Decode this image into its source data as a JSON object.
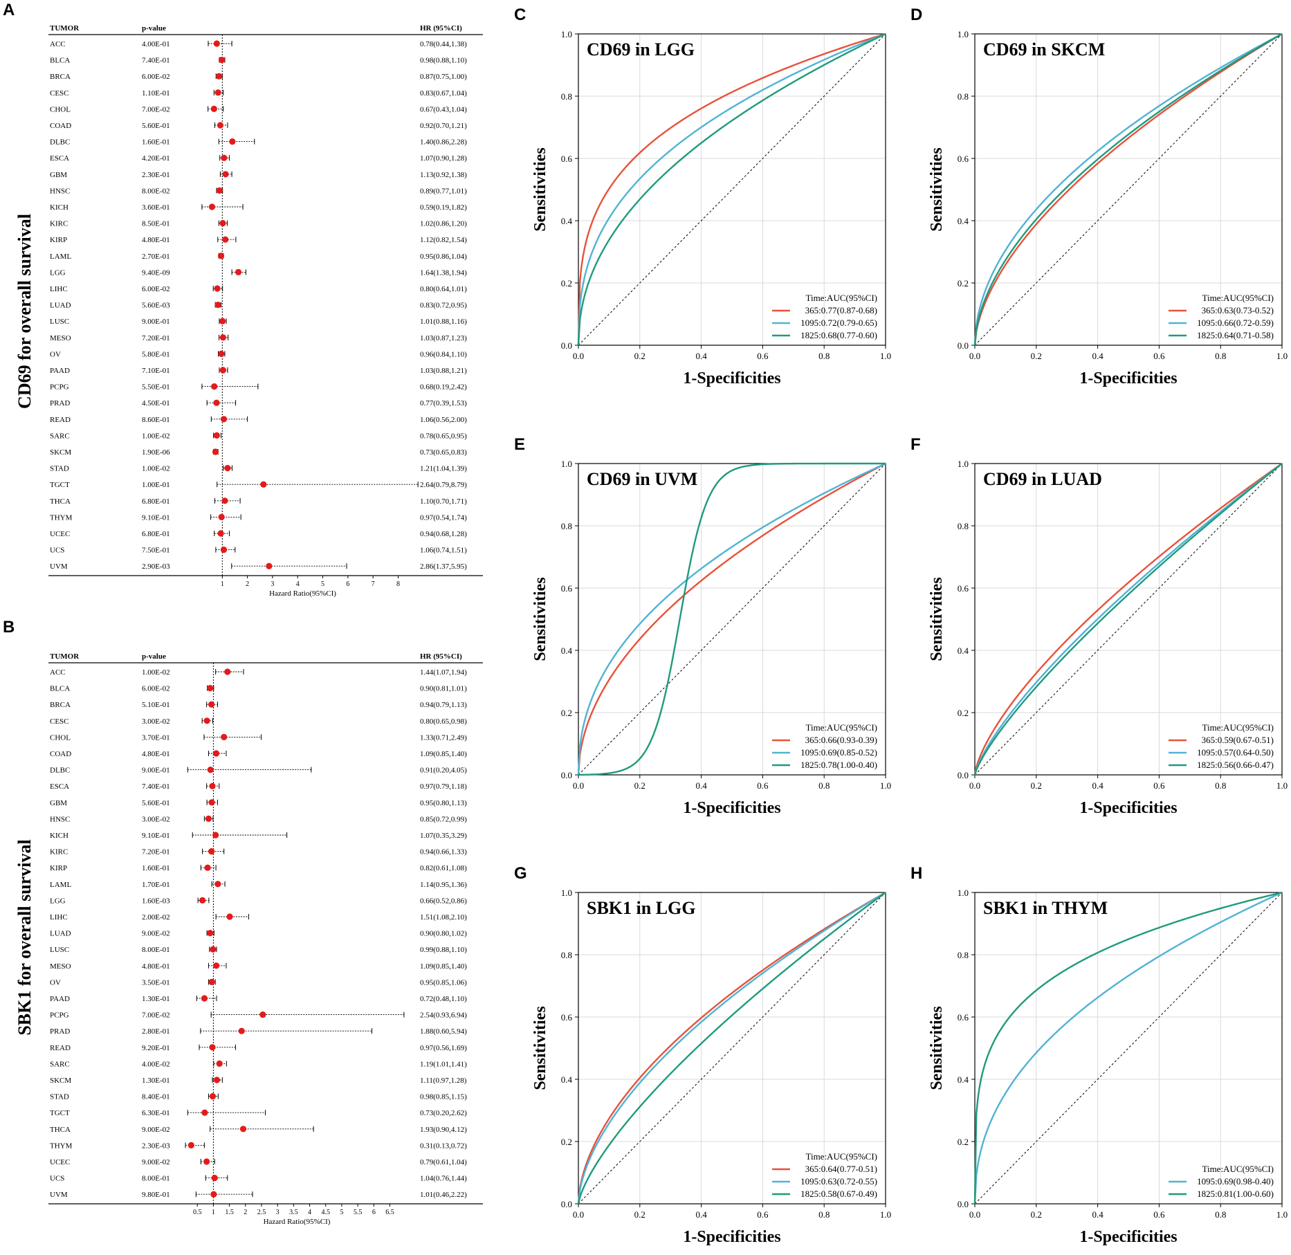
{
  "chart_data": [
    {
      "type": "forest",
      "panel": "A",
      "ylabel": "CD69 for overall survival",
      "xlabel": "Hazard Ratio(95%CI)",
      "headers": {
        "tumor": "TUMOR",
        "p": "p-value",
        "hr": "HR (95%CI)"
      },
      "xticks": [
        "1",
        "2",
        "3",
        "4",
        "5",
        "6",
        "7",
        "8"
      ],
      "xlim": [
        0,
        8.4
      ],
      "ref_line": 1,
      "rows": [
        {
          "tumor": "ACC",
          "p": "4.00E-01",
          "hr_text": "0.78(0.44,1.38)",
          "hr": 0.78,
          "lo": 0.44,
          "hi": 1.38
        },
        {
          "tumor": "BLCA",
          "p": "7.40E-01",
          "hr_text": "0.98(0.88,1.10)",
          "hr": 0.98,
          "lo": 0.88,
          "hi": 1.1
        },
        {
          "tumor": "BRCA",
          "p": "6.00E-02",
          "hr_text": "0.87(0.75,1.00)",
          "hr": 0.87,
          "lo": 0.75,
          "hi": 1.0
        },
        {
          "tumor": "CESC",
          "p": "1.10E-01",
          "hr_text": "0.83(0.67,1.04)",
          "hr": 0.83,
          "lo": 0.67,
          "hi": 1.04
        },
        {
          "tumor": "CHOL",
          "p": "7.00E-02",
          "hr_text": "0.67(0.43,1.04)",
          "hr": 0.67,
          "lo": 0.43,
          "hi": 1.04
        },
        {
          "tumor": "COAD",
          "p": "5.60E-01",
          "hr_text": "0.92(0.70,1.21)",
          "hr": 0.92,
          "lo": 0.7,
          "hi": 1.21
        },
        {
          "tumor": "DLBC",
          "p": "1.60E-01",
          "hr_text": "1.40(0.86,2.28)",
          "hr": 1.4,
          "lo": 0.86,
          "hi": 2.28
        },
        {
          "tumor": "ESCA",
          "p": "4.20E-01",
          "hr_text": "1.07(0.90,1.28)",
          "hr": 1.07,
          "lo": 0.9,
          "hi": 1.28
        },
        {
          "tumor": "GBM",
          "p": "2.30E-01",
          "hr_text": "1.13(0.92,1.38)",
          "hr": 1.13,
          "lo": 0.92,
          "hi": 1.38
        },
        {
          "tumor": "HNSC",
          "p": "8.00E-02",
          "hr_text": "0.89(0.77,1.01)",
          "hr": 0.89,
          "lo": 0.77,
          "hi": 1.01
        },
        {
          "tumor": "KICH",
          "p": "3.60E-01",
          "hr_text": "0.59(0.19,1.82)",
          "hr": 0.59,
          "lo": 0.19,
          "hi": 1.82
        },
        {
          "tumor": "KIRC",
          "p": "8.50E-01",
          "hr_text": "1.02(0.86,1.20)",
          "hr": 1.02,
          "lo": 0.86,
          "hi": 1.2
        },
        {
          "tumor": "KIRP",
          "p": "4.80E-01",
          "hr_text": "1.12(0.82,1.54)",
          "hr": 1.12,
          "lo": 0.82,
          "hi": 1.54
        },
        {
          "tumor": "LAML",
          "p": "2.70E-01",
          "hr_text": "0.95(0.86,1.04)",
          "hr": 0.95,
          "lo": 0.86,
          "hi": 1.04
        },
        {
          "tumor": "LGG",
          "p": "9.40E-09",
          "hr_text": "1.64(1.38,1.94)",
          "hr": 1.64,
          "lo": 1.38,
          "hi": 1.94
        },
        {
          "tumor": "LIHC",
          "p": "6.00E-02",
          "hr_text": "0.80(0.64,1.01)",
          "hr": 0.8,
          "lo": 0.64,
          "hi": 1.01
        },
        {
          "tumor": "LUAD",
          "p": "5.60E-03",
          "hr_text": "0.83(0.72,0.95)",
          "hr": 0.83,
          "lo": 0.72,
          "hi": 0.95
        },
        {
          "tumor": "LUSC",
          "p": "9.00E-01",
          "hr_text": "1.01(0.88,1.16)",
          "hr": 1.01,
          "lo": 0.88,
          "hi": 1.16
        },
        {
          "tumor": "MESO",
          "p": "7.20E-01",
          "hr_text": "1.03(0.87,1.23)",
          "hr": 1.03,
          "lo": 0.87,
          "hi": 1.23
        },
        {
          "tumor": "OV",
          "p": "5.80E-01",
          "hr_text": "0.96(0.84,1.10)",
          "hr": 0.96,
          "lo": 0.84,
          "hi": 1.1
        },
        {
          "tumor": "PAAD",
          "p": "7.10E-01",
          "hr_text": "1.03(0.88,1.21)",
          "hr": 1.03,
          "lo": 0.88,
          "hi": 1.21
        },
        {
          "tumor": "PCPG",
          "p": "5.50E-01",
          "hr_text": "0.68(0.19,2.42)",
          "hr": 0.68,
          "lo": 0.19,
          "hi": 2.42
        },
        {
          "tumor": "PRAD",
          "p": "4.50E-01",
          "hr_text": "0.77(0.39,1.53)",
          "hr": 0.77,
          "lo": 0.39,
          "hi": 1.53
        },
        {
          "tumor": "READ",
          "p": "8.60E-01",
          "hr_text": "1.06(0.56,2.00)",
          "hr": 1.06,
          "lo": 0.56,
          "hi": 2.0
        },
        {
          "tumor": "SARC",
          "p": "1.00E-02",
          "hr_text": "0.78(0.65,0.95)",
          "hr": 0.78,
          "lo": 0.65,
          "hi": 0.95
        },
        {
          "tumor": "SKCM",
          "p": "1.90E-06",
          "hr_text": "0.73(0.65,0.83)",
          "hr": 0.73,
          "lo": 0.65,
          "hi": 0.83
        },
        {
          "tumor": "STAD",
          "p": "1.00E-02",
          "hr_text": "1.21(1.04,1.39)",
          "hr": 1.21,
          "lo": 1.04,
          "hi": 1.39
        },
        {
          "tumor": "TGCT",
          "p": "1.00E-01",
          "hr_text": "2.64(0.79,8.79)",
          "hr": 2.64,
          "lo": 0.79,
          "hi": 8.79
        },
        {
          "tumor": "THCA",
          "p": "6.80E-01",
          "hr_text": "1.10(0.70,1.71)",
          "hr": 1.1,
          "lo": 0.7,
          "hi": 1.71
        },
        {
          "tumor": "THYM",
          "p": "9.10E-01",
          "hr_text": "0.97(0.54,1.74)",
          "hr": 0.97,
          "lo": 0.54,
          "hi": 1.74
        },
        {
          "tumor": "UCEC",
          "p": "6.80E-01",
          "hr_text": "0.94(0.68,1.28)",
          "hr": 0.94,
          "lo": 0.68,
          "hi": 1.28
        },
        {
          "tumor": "UCS",
          "p": "7.50E-01",
          "hr_text": "1.06(0.74,1.51)",
          "hr": 1.06,
          "lo": 0.74,
          "hi": 1.51
        },
        {
          "tumor": "UVM",
          "p": "2.90E-03",
          "hr_text": "2.86(1.37,5.95)",
          "hr": 2.86,
          "lo": 1.37,
          "hi": 5.95
        }
      ]
    },
    {
      "type": "forest",
      "panel": "B",
      "ylabel": "SBK1 for overall survival",
      "xlabel": "Hazard Ratio(95%CI)",
      "headers": {
        "tumor": "TUMOR",
        "p": "p-value",
        "hr": "HR (95%CI)"
      },
      "xticks": [
        "0.5",
        "1",
        "1.5",
        "2",
        "2.5",
        "3",
        "3.5",
        "4",
        "4.5",
        "5",
        "5.5",
        "6",
        "6.5"
      ],
      "xlim": [
        0,
        7.2
      ],
      "ref_line": 1,
      "rows": [
        {
          "tumor": "ACC",
          "p": "1.00E-02",
          "hr_text": "1.44(1.07,1.94)",
          "hr": 1.44,
          "lo": 1.07,
          "hi": 1.94
        },
        {
          "tumor": "BLCA",
          "p": "6.00E-02",
          "hr_text": "0.90(0.81,1.01)",
          "hr": 0.9,
          "lo": 0.81,
          "hi": 1.01
        },
        {
          "tumor": "BRCA",
          "p": "5.10E-01",
          "hr_text": "0.94(0.79,1.13)",
          "hr": 0.94,
          "lo": 0.79,
          "hi": 1.13
        },
        {
          "tumor": "CESC",
          "p": "3.00E-02",
          "hr_text": "0.80(0.65,0.98)",
          "hr": 0.8,
          "lo": 0.65,
          "hi": 0.98
        },
        {
          "tumor": "CHOL",
          "p": "3.70E-01",
          "hr_text": "1.33(0.71,2.49)",
          "hr": 1.33,
          "lo": 0.71,
          "hi": 2.49
        },
        {
          "tumor": "COAD",
          "p": "4.80E-01",
          "hr_text": "1.09(0.85,1.40)",
          "hr": 1.09,
          "lo": 0.85,
          "hi": 1.4
        },
        {
          "tumor": "DLBC",
          "p": "9.00E-01",
          "hr_text": "0.91(0.20,4.05)",
          "hr": 0.91,
          "lo": 0.2,
          "hi": 4.05
        },
        {
          "tumor": "ESCA",
          "p": "7.40E-01",
          "hr_text": "0.97(0.79,1.18)",
          "hr": 0.97,
          "lo": 0.79,
          "hi": 1.18
        },
        {
          "tumor": "GBM",
          "p": "5.60E-01",
          "hr_text": "0.95(0.80,1.13)",
          "hr": 0.95,
          "lo": 0.8,
          "hi": 1.13
        },
        {
          "tumor": "HNSC",
          "p": "3.00E-02",
          "hr_text": "0.85(0.72,0.99)",
          "hr": 0.85,
          "lo": 0.72,
          "hi": 0.99
        },
        {
          "tumor": "KICH",
          "p": "9.10E-01",
          "hr_text": "1.07(0.35,3.29)",
          "hr": 1.07,
          "lo": 0.35,
          "hi": 3.29
        },
        {
          "tumor": "KIRC",
          "p": "7.20E-01",
          "hr_text": "0.94(0.66,1.33)",
          "hr": 0.94,
          "lo": 0.66,
          "hi": 1.33
        },
        {
          "tumor": "KIRP",
          "p": "1.60E-01",
          "hr_text": "0.82(0.61,1.08)",
          "hr": 0.82,
          "lo": 0.61,
          "hi": 1.08
        },
        {
          "tumor": "LAML",
          "p": "1.70E-01",
          "hr_text": "1.14(0.95,1.36)",
          "hr": 1.14,
          "lo": 0.95,
          "hi": 1.36
        },
        {
          "tumor": "LGG",
          "p": "1.60E-03",
          "hr_text": "0.66(0.52,0.86)",
          "hr": 0.66,
          "lo": 0.52,
          "hi": 0.86
        },
        {
          "tumor": "LIHC",
          "p": "2.00E-02",
          "hr_text": "1.51(1.08,2.10)",
          "hr": 1.51,
          "lo": 1.08,
          "hi": 2.1
        },
        {
          "tumor": "LUAD",
          "p": "9.00E-02",
          "hr_text": "0.90(0.80,1.02)",
          "hr": 0.9,
          "lo": 0.8,
          "hi": 1.02
        },
        {
          "tumor": "LUSC",
          "p": "8.00E-01",
          "hr_text": "0.99(0.88,1.10)",
          "hr": 0.99,
          "lo": 0.88,
          "hi": 1.1
        },
        {
          "tumor": "MESO",
          "p": "4.80E-01",
          "hr_text": "1.09(0.85,1.40)",
          "hr": 1.09,
          "lo": 0.85,
          "hi": 1.4
        },
        {
          "tumor": "OV",
          "p": "3.50E-01",
          "hr_text": "0.95(0.85,1.06)",
          "hr": 0.95,
          "lo": 0.85,
          "hi": 1.06
        },
        {
          "tumor": "PAAD",
          "p": "1.30E-01",
          "hr_text": "0.72(0.48,1.10)",
          "hr": 0.72,
          "lo": 0.48,
          "hi": 1.1
        },
        {
          "tumor": "PCPG",
          "p": "7.00E-02",
          "hr_text": "2.54(0.93,6.94)",
          "hr": 2.54,
          "lo": 0.93,
          "hi": 6.94
        },
        {
          "tumor": "PRAD",
          "p": "2.80E-01",
          "hr_text": "1.88(0.60,5.94)",
          "hr": 1.88,
          "lo": 0.6,
          "hi": 5.94
        },
        {
          "tumor": "READ",
          "p": "9.20E-01",
          "hr_text": "0.97(0.56,1.69)",
          "hr": 0.97,
          "lo": 0.56,
          "hi": 1.69
        },
        {
          "tumor": "SARC",
          "p": "4.00E-02",
          "hr_text": "1.19(1.01,1.41)",
          "hr": 1.19,
          "lo": 1.01,
          "hi": 1.41
        },
        {
          "tumor": "SKCM",
          "p": "1.30E-01",
          "hr_text": "1.11(0.97,1.28)",
          "hr": 1.11,
          "lo": 0.97,
          "hi": 1.28
        },
        {
          "tumor": "STAD",
          "p": "8.40E-01",
          "hr_text": "0.98(0.85,1.15)",
          "hr": 0.98,
          "lo": 0.85,
          "hi": 1.15
        },
        {
          "tumor": "TGCT",
          "p": "6.30E-01",
          "hr_text": "0.73(0.20,2.62)",
          "hr": 0.73,
          "lo": 0.2,
          "hi": 2.62
        },
        {
          "tumor": "THCA",
          "p": "9.00E-02",
          "hr_text": "1.93(0.90,4.12)",
          "hr": 1.93,
          "lo": 0.9,
          "hi": 4.12
        },
        {
          "tumor": "THYM",
          "p": "2.30E-03",
          "hr_text": "0.31(0.13,0.72)",
          "hr": 0.31,
          "lo": 0.13,
          "hi": 0.72
        },
        {
          "tumor": "UCEC",
          "p": "9.00E-02",
          "hr_text": "0.79(0.61,1.04)",
          "hr": 0.79,
          "lo": 0.61,
          "hi": 1.04
        },
        {
          "tumor": "UCS",
          "p": "8.00E-01",
          "hr_text": "1.04(0.76,1.44)",
          "hr": 1.04,
          "lo": 0.76,
          "hi": 1.44
        },
        {
          "tumor": "UVM",
          "p": "9.80E-01",
          "hr_text": "1.01(0.46,2.22)",
          "hr": 1.01,
          "lo": 0.46,
          "hi": 2.22
        }
      ]
    },
    {
      "type": "line",
      "panel": "C",
      "title": "CD69 in LGG",
      "xlabel": "1-Specificities",
      "ylabel": "Sensitivities",
      "xlim": [
        0,
        1
      ],
      "ylim": [
        0,
        1
      ],
      "ticks": [
        "0.0",
        "0.2",
        "0.4",
        "0.6",
        "0.8",
        "1.0"
      ],
      "legend_title": "Time:AUC(95%CI)",
      "series": [
        {
          "name": "365:0.77(0.87-0.68)",
          "auc": 0.77
        },
        {
          "name": "1095:0.72(0.79-0.65)",
          "auc": 0.72
        },
        {
          "name": "1825:0.68(0.77-0.60)",
          "auc": 0.68
        }
      ]
    },
    {
      "type": "line",
      "panel": "D",
      "title": "CD69 in SKCM",
      "xlabel": "1-Specificities",
      "ylabel": "Sensitivities",
      "xlim": [
        0,
        1
      ],
      "ylim": [
        0,
        1
      ],
      "ticks": [
        "0.0",
        "0.2",
        "0.4",
        "0.6",
        "0.8",
        "1.0"
      ],
      "legend_title": "Time:AUC(95%CI)",
      "series": [
        {
          "name": "365:0.63(0.73-0.52)",
          "auc": 0.63
        },
        {
          "name": "1095:0.66(0.72-0.59)",
          "auc": 0.66
        },
        {
          "name": "1825:0.64(0.71-0.58)",
          "auc": 0.64
        }
      ]
    },
    {
      "type": "line",
      "panel": "E",
      "title": "CD69 in UVM",
      "xlabel": "1-Specificities",
      "ylabel": "Sensitivities",
      "xlim": [
        0,
        1
      ],
      "ylim": [
        0,
        1
      ],
      "ticks": [
        "0.0",
        "0.2",
        "0.4",
        "0.6",
        "0.8",
        "1.0"
      ],
      "legend_title": "Time:AUC(95%CI)",
      "series": [
        {
          "name": "365:0.66(0.93-0.39)",
          "auc": 0.66
        },
        {
          "name": "1095:0.69(0.85-0.52)",
          "auc": 0.69
        },
        {
          "name": "1825:0.78(1.00-0.40)",
          "auc": 0.78
        }
      ]
    },
    {
      "type": "line",
      "panel": "F",
      "title": "CD69 in LUAD",
      "xlabel": "1-Specificities",
      "ylabel": "Sensitivities",
      "xlim": [
        0,
        1
      ],
      "ylim": [
        0,
        1
      ],
      "ticks": [
        "0.0",
        "0.2",
        "0.4",
        "0.6",
        "0.8",
        "1.0"
      ],
      "legend_title": "Time:AUC(95%CI)",
      "series": [
        {
          "name": "365:0.59(0.67-0.51)",
          "auc": 0.59
        },
        {
          "name": "1095:0.57(0.64-0.50)",
          "auc": 0.57
        },
        {
          "name": "1825:0.56(0.66-0.47)",
          "auc": 0.56
        }
      ]
    },
    {
      "type": "line",
      "panel": "G",
      "title": "SBK1 in LGG",
      "xlabel": "1-Specificities",
      "ylabel": "Sensitivities",
      "xlim": [
        0,
        1
      ],
      "ylim": [
        0,
        1
      ],
      "ticks": [
        "0.0",
        "0.2",
        "0.4",
        "0.6",
        "0.8",
        "1.0"
      ],
      "legend_title": "Time:AUC(95%CI)",
      "series": [
        {
          "name": "365:0.64(0.77-0.51)",
          "auc": 0.64
        },
        {
          "name": "1095:0.63(0.72-0.55)",
          "auc": 0.63
        },
        {
          "name": "1825:0.58(0.67-0.49)",
          "auc": 0.58
        }
      ]
    },
    {
      "type": "line",
      "panel": "H",
      "title": "SBK1 in THYM",
      "xlabel": "1-Specificities",
      "ylabel": "Sensitivities",
      "xlim": [
        0,
        1
      ],
      "ylim": [
        0,
        1
      ],
      "ticks": [
        "0.0",
        "0.2",
        "0.4",
        "0.6",
        "0.8",
        "1.0"
      ],
      "legend_title": "Time:AUC(95%CI)",
      "series": [
        {
          "name": "1095:0.69(0.98-0.40)",
          "auc": 0.69
        },
        {
          "name": "1825:0.81(1.00-0.60)",
          "auc": 0.81
        }
      ]
    }
  ],
  "colors": {
    "point": "#e41a1c",
    "red": "#e8513a",
    "blue": "#4fb3d4",
    "green": "#1f9a7c",
    "grid": "#d9d9d9"
  }
}
